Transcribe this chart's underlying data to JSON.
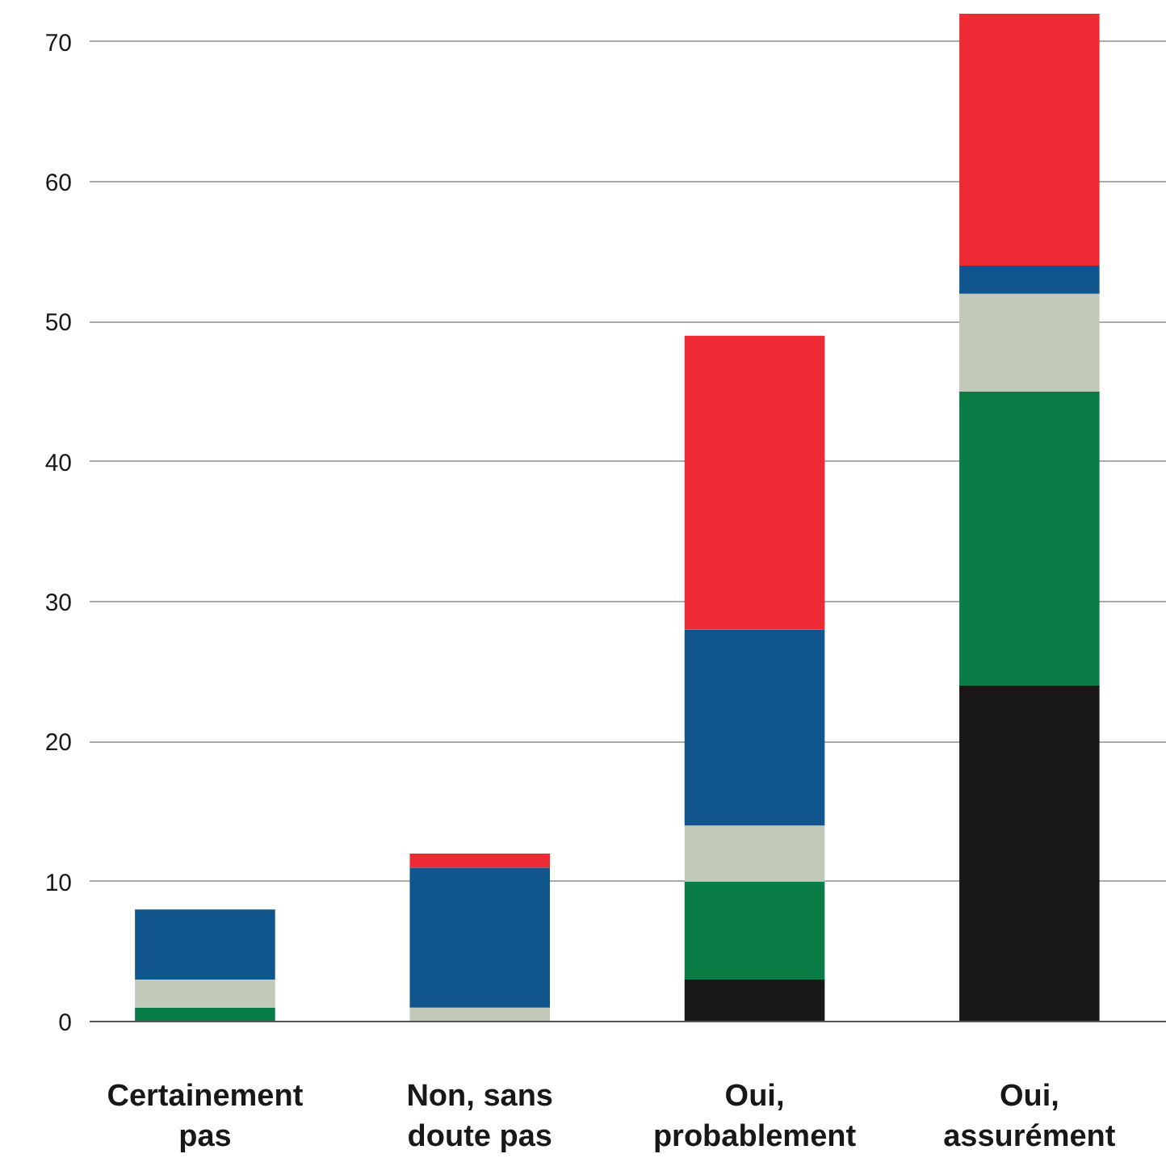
{
  "chart_data": {
    "type": "bar",
    "stacked": true,
    "categories": [
      "Certainement\npas",
      "Non, sans\ndoute pas",
      "Oui,\nprobablement",
      "Oui,\nassurément"
    ],
    "series": [
      {
        "color": "#1a1719",
        "values": [
          0,
          0,
          3,
          24
        ]
      },
      {
        "color": "#0a7d46",
        "values": [
          1,
          0,
          7,
          21
        ]
      },
      {
        "color": "#c2c9b8",
        "values": [
          2,
          1,
          4,
          7
        ]
      },
      {
        "color": "#10568c",
        "values": [
          5,
          10,
          14,
          2
        ]
      },
      {
        "color": "#ee2a35",
        "values": [
          0,
          1,
          21,
          18
        ]
      }
    ],
    "ylim": [
      0,
      72
    ],
    "yticks": [
      0,
      10,
      20,
      30,
      40,
      50,
      60,
      70
    ],
    "grid": "y"
  }
}
